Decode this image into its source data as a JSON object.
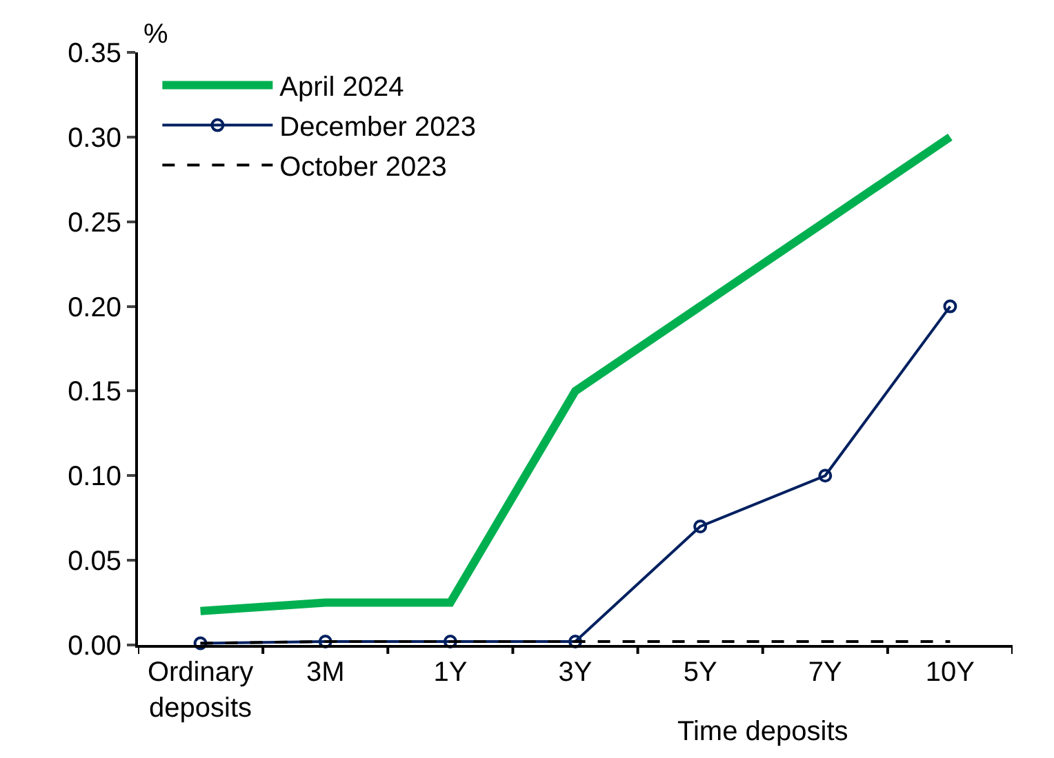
{
  "chart_data": {
    "type": "line",
    "ylabel": "%",
    "xlabel": "Time deposits",
    "categories": [
      "Ordinary\ndeposits",
      "3M",
      "1Y",
      "3Y",
      "5Y",
      "7Y",
      "10Y"
    ],
    "series": [
      {
        "name": "April 2024",
        "color": "#00b050",
        "values": [
          0.02,
          0.025,
          0.025,
          0.15,
          0.2,
          0.25,
          0.3
        ],
        "marker": "none",
        "line_style": "solid"
      },
      {
        "name": "December 2023",
        "color": "#002060",
        "values": [
          0.001,
          0.002,
          0.002,
          0.002,
          0.07,
          0.1,
          0.2
        ],
        "marker": "circle",
        "line_style": "solid"
      },
      {
        "name": "October 2023",
        "color": "#000000",
        "values": [
          0.001,
          0.002,
          0.002,
          0.002,
          0.002,
          0.002,
          0.002
        ],
        "marker": "none",
        "line_style": "dashed"
      }
    ],
    "ylim": [
      0,
      0.35
    ],
    "yticks": [
      {
        "value": 0,
        "label": "0.00"
      },
      {
        "value": 0.05,
        "label": "0.05"
      },
      {
        "value": 0.1,
        "label": "0.10"
      },
      {
        "value": 0.15,
        "label": "0.15"
      },
      {
        "value": 0.2,
        "label": "0.20"
      },
      {
        "value": 0.25,
        "label": "0.25"
      },
      {
        "value": 0.3,
        "label": "0.30"
      },
      {
        "value": 0.35,
        "label": "0.35"
      }
    ],
    "grid": false,
    "legend": "top left"
  }
}
